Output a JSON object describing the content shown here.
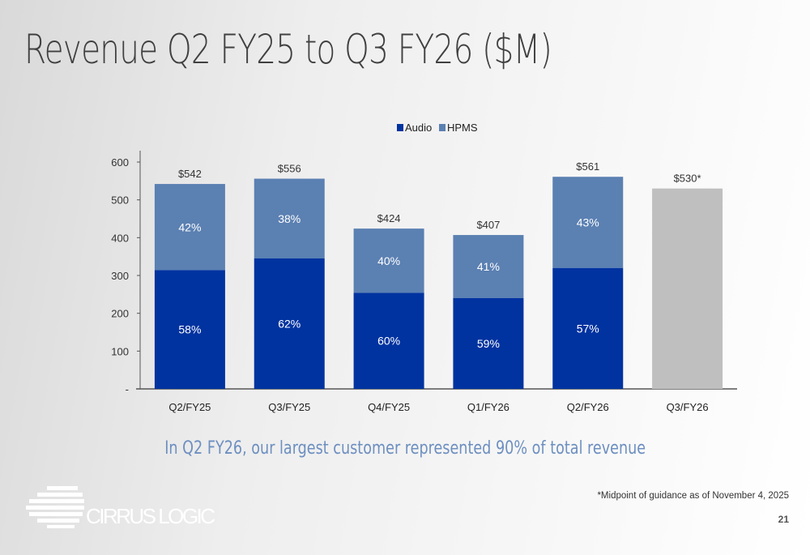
{
  "title": "Revenue Q2 FY25 to Q3 FY26 ($M)",
  "subtitle": "In Q2 FY26, our largest customer represented 90% of total revenue",
  "footnote": "*Midpoint of guidance as of November 4, 2025",
  "page_number": "21",
  "logo_text": "CIRRUS LOGIC",
  "chart_data": {
    "type": "bar",
    "stacked": true,
    "categories": [
      "Q2/FY25",
      "Q3/FY25",
      "Q4/FY25",
      "Q1/FY26",
      "Q2/FY26",
      "Q3/FY26"
    ],
    "series": [
      {
        "name": "Audio",
        "color": "#0033a0",
        "values": [
          314,
          345,
          254,
          240,
          320,
          null
        ],
        "labels": [
          "58%",
          "62%",
          "60%",
          "59%",
          "57%",
          ""
        ]
      },
      {
        "name": "HPMS",
        "color": "#5b80b2",
        "values": [
          228,
          211,
          170,
          167,
          241,
          null
        ],
        "labels": [
          "42%",
          "38%",
          "40%",
          "41%",
          "43%",
          ""
        ]
      },
      {
        "name": "",
        "color": "#bfbfbf",
        "values": [
          null,
          null,
          null,
          null,
          null,
          530
        ],
        "labels": [
          "",
          "",
          "",
          "",
          "",
          ""
        ]
      }
    ],
    "totals": [
      "$542",
      "$556",
      "$424",
      "$407",
      "$561",
      "$530*"
    ],
    "total_values": [
      542,
      556,
      424,
      407,
      561,
      530
    ],
    "yticks": [
      "-",
      "100",
      "200",
      "300",
      "400",
      "500",
      "600"
    ],
    "ylim": [
      0,
      600
    ],
    "legend_position": "top-center",
    "grid": false
  }
}
